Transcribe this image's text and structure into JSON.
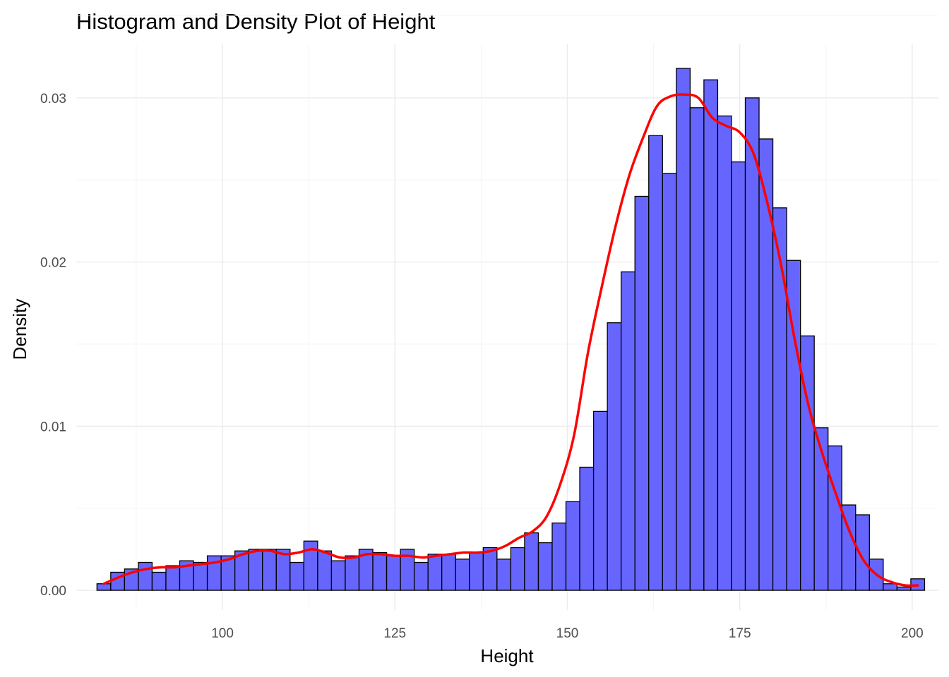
{
  "chart_data": {
    "type": "bar",
    "title": "Histogram and Density Plot of Height",
    "xlabel": "Height",
    "ylabel": "Density",
    "xlim": [
      78.8,
      203.8
    ],
    "ylim": [
      -0.0012,
      0.0333
    ],
    "x_ticks": [
      {
        "value": 100,
        "label": "100"
      },
      {
        "value": 125,
        "label": "125"
      },
      {
        "value": 150,
        "label": "150"
      },
      {
        "value": 175,
        "label": "175"
      },
      {
        "value": 200,
        "label": "200"
      }
    ],
    "y_ticks": [
      {
        "value": 0.0,
        "label": "0.00"
      },
      {
        "value": 0.01,
        "label": "0.01"
      },
      {
        "value": 0.02,
        "label": "0.02"
      },
      {
        "value": 0.03,
        "label": "0.03"
      }
    ],
    "grid": true,
    "bin_width": 2,
    "bin_start": 81.8,
    "bar_fill": "#6666ff",
    "bar_outline": "#000000",
    "histogram_values": [
      0.0004,
      0.0011,
      0.0013,
      0.0017,
      0.0011,
      0.0015,
      0.0018,
      0.0017,
      0.0021,
      0.0021,
      0.0024,
      0.0025,
      0.0025,
      0.0025,
      0.0017,
      0.003,
      0.0024,
      0.0018,
      0.0021,
      0.0025,
      0.0023,
      0.0021,
      0.0025,
      0.0017,
      0.0022,
      0.0022,
      0.0019,
      0.0023,
      0.0026,
      0.0019,
      0.0026,
      0.0035,
      0.0029,
      0.0041,
      0.0054,
      0.0075,
      0.0109,
      0.0163,
      0.0194,
      0.024,
      0.0277,
      0.0254,
      0.0318,
      0.0294,
      0.0311,
      0.0289,
      0.0261,
      0.03,
      0.0275,
      0.0233,
      0.0201,
      0.0155,
      0.0099,
      0.0088,
      0.0052,
      0.0046,
      0.0019,
      0.0004,
      0.0002,
      0.0007
    ],
    "density_color": "#ff0000",
    "density": {
      "x": [
        82.8,
        85,
        87,
        89,
        91,
        93,
        95,
        97,
        99,
        101,
        103,
        105,
        107,
        109,
        111,
        113,
        115,
        117,
        119,
        121,
        123,
        125,
        127,
        129,
        131,
        133,
        135,
        137,
        139,
        141,
        143,
        145,
        147,
        149,
        151,
        153,
        155,
        157,
        159,
        161,
        163,
        165,
        167,
        169,
        171,
        173,
        175,
        177,
        179,
        181,
        183,
        185,
        187,
        189,
        191,
        193,
        195,
        197,
        199,
        200.8
      ],
      "y": [
        0.0004,
        0.0008,
        0.0011,
        0.0013,
        0.0014,
        0.0014,
        0.0015,
        0.0016,
        0.0017,
        0.0019,
        0.0022,
        0.0024,
        0.0024,
        0.0022,
        0.0023,
        0.0025,
        0.0023,
        0.002,
        0.002,
        0.0022,
        0.0022,
        0.0021,
        0.0021,
        0.002,
        0.0021,
        0.0022,
        0.0023,
        0.0023,
        0.0024,
        0.0027,
        0.0032,
        0.0036,
        0.0045,
        0.0065,
        0.0095,
        0.0145,
        0.0185,
        0.0222,
        0.0253,
        0.0276,
        0.0295,
        0.0301,
        0.0302,
        0.03,
        0.0288,
        0.0283,
        0.0279,
        0.0266,
        0.0236,
        0.0198,
        0.0152,
        0.0112,
        0.0083,
        0.0058,
        0.0035,
        0.0018,
        0.0009,
        0.0005,
        0.0003,
        0.0003
      ]
    }
  }
}
